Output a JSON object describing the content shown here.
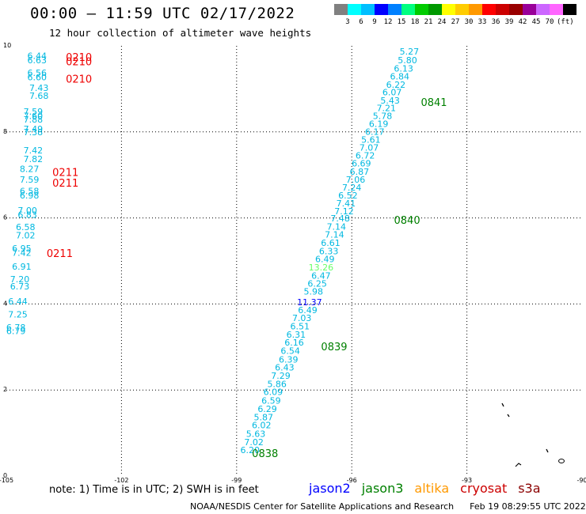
{
  "title": "00:00 – 11:59 UTC 02/17/2022",
  "subtitle": "12 hour collection of altimeter wave heights",
  "colorbar": {
    "colors": [
      "#808080",
      "#00ffff",
      "#00bfff",
      "#0000ff",
      "#0080ff",
      "#00ff80",
      "#00cc00",
      "#009900",
      "#ffff00",
      "#ffcc00",
      "#ff9900",
      "#ff0000",
      "#cc0000",
      "#990000",
      "#990099",
      "#cc66ff",
      "#ff66ff",
      "#000000"
    ],
    "labels": [
      "3",
      "6",
      "9",
      "12",
      "15",
      "18",
      "21",
      "24",
      "27",
      "30",
      "33",
      "36",
      "39",
      "42",
      "45",
      "70"
    ],
    "unit": "(ft)"
  },
  "axes": {
    "x_ticks": [
      "-105",
      "-102",
      "-99",
      "-96",
      "-93",
      "-90"
    ],
    "y_ticks": [
      "0",
      "2",
      "4",
      "6",
      "8",
      "10"
    ],
    "xlim": [
      -105,
      -90
    ],
    "ylim": [
      0,
      10
    ]
  },
  "colors": {
    "wave_cyan": "#00b8e0",
    "jason2": "#0000ff",
    "jason3": "#008000",
    "altika": "#ff9900",
    "cryosat": "#cc0000",
    "s3a": "#8b0000",
    "highlight_green": "#66ff66",
    "grid": "#000000"
  },
  "chart_data": {
    "type": "scatter",
    "xlim": [
      -105,
      -90
    ],
    "ylim": [
      0,
      10
    ],
    "grid": "dotted",
    "track_wave_heights": [
      {
        "x": -94.5,
        "y": 9.8,
        "v": "5.27"
      },
      {
        "x": -94.55,
        "y": 9.6,
        "v": "5.80"
      },
      {
        "x": -94.65,
        "y": 9.4,
        "v": "6.13"
      },
      {
        "x": -94.75,
        "y": 9.22,
        "v": "6.84"
      },
      {
        "x": -94.85,
        "y": 9.03,
        "v": "6.22"
      },
      {
        "x": -94.95,
        "y": 8.85,
        "v": "6.07"
      },
      {
        "x": -95.0,
        "y": 8.66,
        "v": "5.43"
      },
      {
        "x": -95.1,
        "y": 8.48,
        "v": "7.21"
      },
      {
        "x": -95.2,
        "y": 8.3,
        "v": "5.78"
      },
      {
        "x": -95.3,
        "y": 8.12,
        "v": "6.19"
      },
      {
        "x": -95.4,
        "y": 7.93,
        "v": "6.17"
      },
      {
        "x": -95.5,
        "y": 7.75,
        "v": "5.61"
      },
      {
        "x": -95.55,
        "y": 7.56,
        "v": "7.07"
      },
      {
        "x": -95.65,
        "y": 7.38,
        "v": "6.72"
      },
      {
        "x": -95.75,
        "y": 7.2,
        "v": "6.69"
      },
      {
        "x": -95.8,
        "y": 7.0,
        "v": "6.87"
      },
      {
        "x": -95.9,
        "y": 6.82,
        "v": "7.06"
      },
      {
        "x": -96.0,
        "y": 6.64,
        "v": "7.24"
      },
      {
        "x": -96.1,
        "y": 6.45,
        "v": "6.52"
      },
      {
        "x": -96.15,
        "y": 6.27,
        "v": "7.41"
      },
      {
        "x": -96.2,
        "y": 6.08,
        "v": "7.12"
      },
      {
        "x": -96.3,
        "y": 5.92,
        "v": "7.48"
      },
      {
        "x": -96.4,
        "y": 5.73,
        "v": "7.14"
      },
      {
        "x": -96.45,
        "y": 5.54,
        "v": "7.14"
      },
      {
        "x": -96.55,
        "y": 5.35,
        "v": "6.61"
      },
      {
        "x": -96.6,
        "y": 5.16,
        "v": "6.33"
      },
      {
        "x": -96.7,
        "y": 4.97,
        "v": "6.49"
      },
      {
        "x": -96.8,
        "y": 4.78,
        "v": "13.26"
      },
      {
        "x": -96.8,
        "y": 4.59,
        "v": "6.47"
      },
      {
        "x": -96.9,
        "y": 4.4,
        "v": "6.25"
      },
      {
        "x": -97.0,
        "y": 4.22,
        "v": "5.98"
      },
      {
        "x": -97.1,
        "y": 3.97,
        "v": "11.37"
      },
      {
        "x": -97.15,
        "y": 3.79,
        "v": "6.49"
      },
      {
        "x": -97.3,
        "y": 3.6,
        "v": "7.03"
      },
      {
        "x": -97.35,
        "y": 3.41,
        "v": "6.51"
      },
      {
        "x": -97.45,
        "y": 3.22,
        "v": "6.31"
      },
      {
        "x": -97.5,
        "y": 3.03,
        "v": "6.16"
      },
      {
        "x": -97.6,
        "y": 2.84,
        "v": "6.54"
      },
      {
        "x": -97.65,
        "y": 2.64,
        "v": "6.39"
      },
      {
        "x": -97.75,
        "y": 2.45,
        "v": "6.43"
      },
      {
        "x": -97.85,
        "y": 2.26,
        "v": "7.29"
      },
      {
        "x": -97.95,
        "y": 2.07,
        "v": "5.86"
      },
      {
        "x": -98.05,
        "y": 1.88,
        "v": "6.09"
      },
      {
        "x": -98.1,
        "y": 1.68,
        "v": "6.59"
      },
      {
        "x": -98.2,
        "y": 1.49,
        "v": "6.29"
      },
      {
        "x": -98.3,
        "y": 1.3,
        "v": "5.87"
      },
      {
        "x": -98.35,
        "y": 1.11,
        "v": "6.02"
      },
      {
        "x": -98.5,
        "y": 0.91,
        "v": "5.63"
      },
      {
        "x": -98.55,
        "y": 0.72,
        "v": "7.02"
      },
      {
        "x": -98.65,
        "y": 0.53,
        "v": "6.20"
      }
    ],
    "track_time_labels": [
      {
        "x": -94.2,
        "y": 8.66,
        "v": "0841"
      },
      {
        "x": -94.9,
        "y": 5.92,
        "v": "0840"
      },
      {
        "x": -96.8,
        "y": 2.98,
        "v": "0839"
      },
      {
        "x": -98.6,
        "y": 0.5,
        "v": "0838"
      }
    ],
    "edge_wave_heights": [
      {
        "x": -104.2,
        "y": 9.7,
        "v": "6.44"
      },
      {
        "x": -104.2,
        "y": 9.6,
        "v": "6.63"
      },
      {
        "x": -104.2,
        "y": 9.3,
        "v": "6.56"
      },
      {
        "x": -104.2,
        "y": 9.2,
        "v": "6.60"
      },
      {
        "x": -104.15,
        "y": 8.95,
        "v": "7.43"
      },
      {
        "x": -104.15,
        "y": 8.77,
        "v": "7.68"
      },
      {
        "x": -104.3,
        "y": 8.4,
        "v": "7.59"
      },
      {
        "x": -104.3,
        "y": 8.3,
        "v": "7.60"
      },
      {
        "x": -104.3,
        "y": 8.22,
        "v": "7.88"
      },
      {
        "x": -104.3,
        "y": 8.0,
        "v": "7.49"
      },
      {
        "x": -104.3,
        "y": 7.92,
        "v": "7.38"
      },
      {
        "x": -104.3,
        "y": 7.5,
        "v": "7.42"
      },
      {
        "x": -104.3,
        "y": 7.3,
        "v": "7.82"
      },
      {
        "x": -104.4,
        "y": 7.07,
        "v": "8.27"
      },
      {
        "x": -104.4,
        "y": 6.82,
        "v": "7.59"
      },
      {
        "x": -104.4,
        "y": 6.55,
        "v": "6.58"
      },
      {
        "x": -104.4,
        "y": 6.45,
        "v": "6.98"
      },
      {
        "x": -104.45,
        "y": 6.1,
        "v": "7.00"
      },
      {
        "x": -104.45,
        "y": 6.0,
        "v": "6.83"
      },
      {
        "x": -104.5,
        "y": 5.72,
        "v": "6.58"
      },
      {
        "x": -104.5,
        "y": 5.52,
        "v": "7.02"
      },
      {
        "x": -104.6,
        "y": 5.22,
        "v": "6.95"
      },
      {
        "x": -104.6,
        "y": 5.12,
        "v": "7.42"
      },
      {
        "x": -104.6,
        "y": 4.8,
        "v": "6.91"
      },
      {
        "x": -104.65,
        "y": 4.5,
        "v": "7.20"
      },
      {
        "x": -104.65,
        "y": 4.34,
        "v": "6.73"
      },
      {
        "x": -104.7,
        "y": 3.99,
        "v": "6.44"
      },
      {
        "x": -104.7,
        "y": 3.69,
        "v": "7.25"
      },
      {
        "x": -104.75,
        "y": 3.38,
        "v": "6.78"
      },
      {
        "x": -104.75,
        "y": 3.3,
        "v": "6.79"
      }
    ],
    "edge_time_labels": [
      {
        "x": -103.45,
        "y": 9.72,
        "v": "0210"
      },
      {
        "x": -103.45,
        "y": 9.62,
        "v": "0210"
      },
      {
        "x": -103.45,
        "y": 9.22,
        "v": "0210"
      },
      {
        "x": -103.8,
        "y": 7.05,
        "v": "0211"
      },
      {
        "x": -103.8,
        "y": 6.8,
        "v": "0211"
      },
      {
        "x": -103.95,
        "y": 5.17,
        "v": "0211"
      }
    ]
  },
  "note": "note:  1) Time is in UTC;  2) SWH is in feet",
  "legend": [
    "jason2",
    "jason3",
    "altika",
    "cryosat",
    "s3a"
  ],
  "credit": "NOAA/NESDIS Center for Satellite Applications and Research",
  "timestamp": "Feb 19 08:29:55 UTC 2022"
}
